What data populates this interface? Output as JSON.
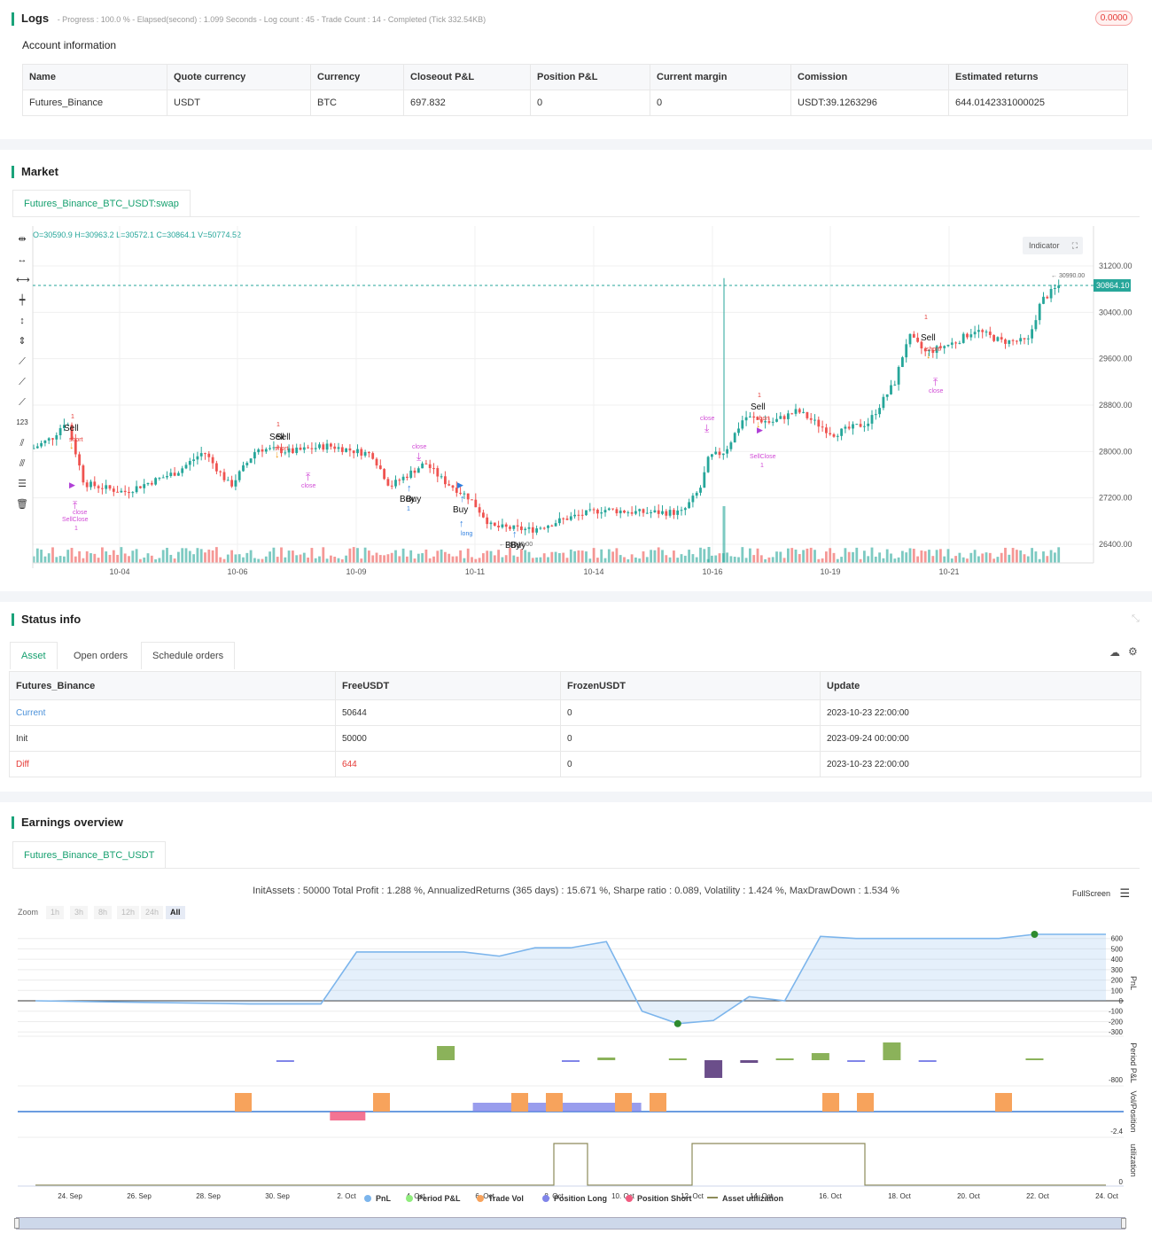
{
  "logs": {
    "title": "Logs",
    "status": "- Progress : 100.0 % - Elapsed(second) : 1.099  Seconds - Log count : 45 - Trade Count : 14 - Completed (Tick 332.54KB)",
    "badge": "0.0000"
  },
  "account": {
    "heading": "Account information",
    "columns": [
      "Name",
      "Quote currency",
      "Currency",
      "Closeout P&L",
      "Position P&L",
      "Current margin",
      "Comission",
      "Estimated returns"
    ],
    "row": [
      "Futures_Binance",
      "USDT",
      "BTC",
      "697.832",
      "0",
      "0",
      "USDT:39.1263296",
      "644.0142331000025"
    ]
  },
  "market": {
    "title": "Market",
    "tab": "Futures_Binance_BTC_USDT:swap",
    "ohlc": "O=30590.9 H=30963.2 L=30572.1 C=30864.1 V=50774.52",
    "indicator_btn": "Indicator",
    "price_ticks": [
      "31200.00",
      "30400.00",
      "29600.00",
      "28800.00",
      "28000.00",
      "27200.00",
      "26400.00"
    ],
    "last_price": "30864.10",
    "high_label": "30990.00",
    "low_label": "26540.00",
    "date_ticks": [
      "10-04",
      "10-06",
      "10-09",
      "10-11",
      "10-14",
      "10-16",
      "10-19",
      "10-21"
    ],
    "annotations": {
      "sell": "Sell",
      "buy": "Buy",
      "short": "short",
      "long": "long",
      "close": "close",
      "sellclose": "SellClose",
      "one": "1"
    },
    "colors": {
      "up": "#26a69a",
      "down": "#ef5350",
      "accent": "#16a06f"
    }
  },
  "status": {
    "title": "Status info",
    "tabs": [
      "Asset",
      "Open orders",
      "Schedule orders"
    ],
    "columns": [
      "Futures_Binance",
      "FreeUSDT",
      "FrozenUSDT",
      "Update"
    ],
    "rows": [
      [
        "Current",
        "50644",
        "0",
        "2023-10-23 22:00:00"
      ],
      [
        "Init",
        "50000",
        "0",
        "2023-09-24 00:00:00"
      ],
      [
        "Diff",
        "644",
        "0",
        "2023-10-23 22:00:00"
      ]
    ]
  },
  "earnings": {
    "title": "Earnings overview",
    "tab": "Futures_Binance_BTC_USDT",
    "summary": "InitAssets : 50000 Total Profit : 1.288 %, AnnualizedReturns (365 days) : 15.671 %, Sharpe ratio : 0.089, Volatility : 1.424 %, MaxDrawDown : 1.534 %",
    "fullscreen": "FullScreen",
    "zoom_label": "Zoom",
    "zoom_options": [
      "1h",
      "3h",
      "8h",
      "12h",
      "24h",
      "All"
    ],
    "pnl_ticks": [
      "600",
      "500",
      "400",
      "300",
      "200",
      "100",
      "0",
      "-100",
      "-200",
      "-300"
    ],
    "axis_titles": [
      "PnL",
      "Period P&L",
      "Vol/Position",
      "utilization"
    ],
    "period_tick": "-800",
    "vol_tick": "-2.4",
    "util_tick": "0",
    "date_ticks": [
      "24. Sep",
      "26. Sep",
      "28. Sep",
      "30. Sep",
      "2. Oct",
      "4. Oct",
      "6. Oct",
      "8. Oct",
      "10. Oct",
      "12. Oct",
      "14. Oct",
      "16. Oct",
      "18. Oct",
      "20. Oct",
      "22. Oct",
      "24. Oct"
    ],
    "legend": [
      "PnL",
      "Period P&L",
      "Trade Vol",
      "Position Long",
      "Position Short",
      "Asset utilization"
    ],
    "legend_colors": [
      "#7cb5ec",
      "#90ed7d",
      "#f7a35c",
      "#8085e9",
      "#f15c80",
      "#8d8b5a"
    ]
  },
  "chart_data": {
    "type": "line",
    "title": "",
    "series": [
      {
        "name": "PnL",
        "x": [
          "24. Sep",
          "30. Sep",
          "2. Oct",
          "3. Oct",
          "5. Oct",
          "6. Oct",
          "7. Oct",
          "8. Oct",
          "9. Oct",
          "10. Oct",
          "11. Oct",
          "12. Oct",
          "13. Oct",
          "14. Oct",
          "15. Oct",
          "16. Oct",
          "17. Oct",
          "18. Oct",
          "21. Oct",
          "22. Oct",
          "24. Oct"
        ],
        "values": [
          0,
          -30,
          -30,
          470,
          470,
          470,
          430,
          510,
          510,
          570,
          -100,
          -220,
          -190,
          40,
          0,
          620,
          600,
          600,
          600,
          640,
          640
        ]
      }
    ],
    "ylim": [
      -300,
      650
    ]
  }
}
